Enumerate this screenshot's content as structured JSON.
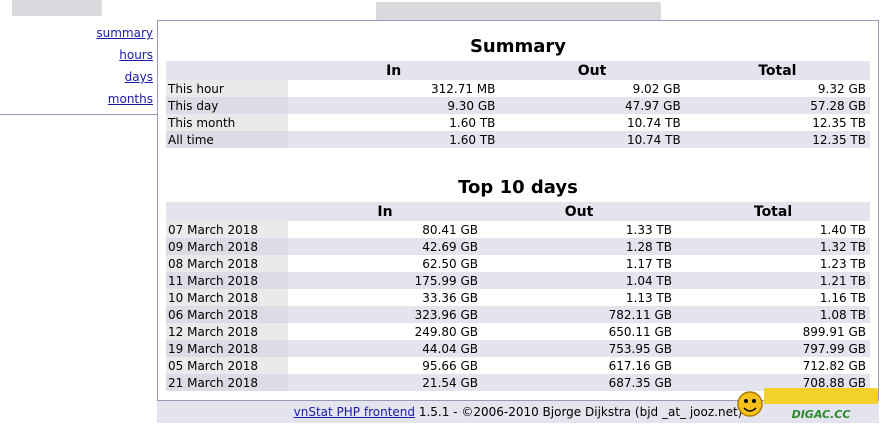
{
  "nav": {
    "summary": "summary",
    "hours": "hours",
    "days": "days",
    "months": "months"
  },
  "summary": {
    "title": "Summary",
    "headers": [
      "In",
      "Out",
      "Total"
    ],
    "rows": [
      {
        "label": "This hour",
        "in": "312.71 MB",
        "out": "9.02 GB",
        "total": "9.32 GB"
      },
      {
        "label": "This day",
        "in": "9.30 GB",
        "out": "47.97 GB",
        "total": "57.28 GB"
      },
      {
        "label": "This month",
        "in": "1.60 TB",
        "out": "10.74 TB",
        "total": "12.35 TB"
      },
      {
        "label": "All time",
        "in": "1.60 TB",
        "out": "10.74 TB",
        "total": "12.35 TB"
      }
    ]
  },
  "top10": {
    "title": "Top 10 days",
    "headers": [
      "In",
      "Out",
      "Total"
    ],
    "rows": [
      {
        "label": "07 March 2018",
        "in": "80.41 GB",
        "out": "1.33 TB",
        "total": "1.40 TB"
      },
      {
        "label": "09 March 2018",
        "in": "42.69 GB",
        "out": "1.28 TB",
        "total": "1.32 TB"
      },
      {
        "label": "08 March 2018",
        "in": "62.50 GB",
        "out": "1.17 TB",
        "total": "1.23 TB"
      },
      {
        "label": "11 March 2018",
        "in": "175.99 GB",
        "out": "1.04 TB",
        "total": "1.21 TB"
      },
      {
        "label": "10 March 2018",
        "in": "33.36 GB",
        "out": "1.13 TB",
        "total": "1.16 TB"
      },
      {
        "label": "06 March 2018",
        "in": "323.96 GB",
        "out": "782.11 GB",
        "total": "1.08 TB"
      },
      {
        "label": "12 March 2018",
        "in": "249.80 GB",
        "out": "650.11 GB",
        "total": "899.91 GB"
      },
      {
        "label": "19 March 2018",
        "in": "44.04 GB",
        "out": "753.95 GB",
        "total": "797.99 GB"
      },
      {
        "label": "05 March 2018",
        "in": "95.66 GB",
        "out": "617.16 GB",
        "total": "712.82 GB"
      },
      {
        "label": "21 March 2018",
        "in": "21.54 GB",
        "out": "687.35 GB",
        "total": "708.88 GB"
      }
    ]
  },
  "footer": {
    "link": "vnStat PHP frontend",
    "text": " 1.5.1 - ©2006-2010 Bjorge Dijkstra (bjd _at_ jooz.net)"
  },
  "watermark": {
    "text": "DIGAC.CC"
  },
  "colors": {
    "link": "#1a1aa6",
    "header_bg": "#e4e4ef",
    "border": "#9a9ab8"
  }
}
